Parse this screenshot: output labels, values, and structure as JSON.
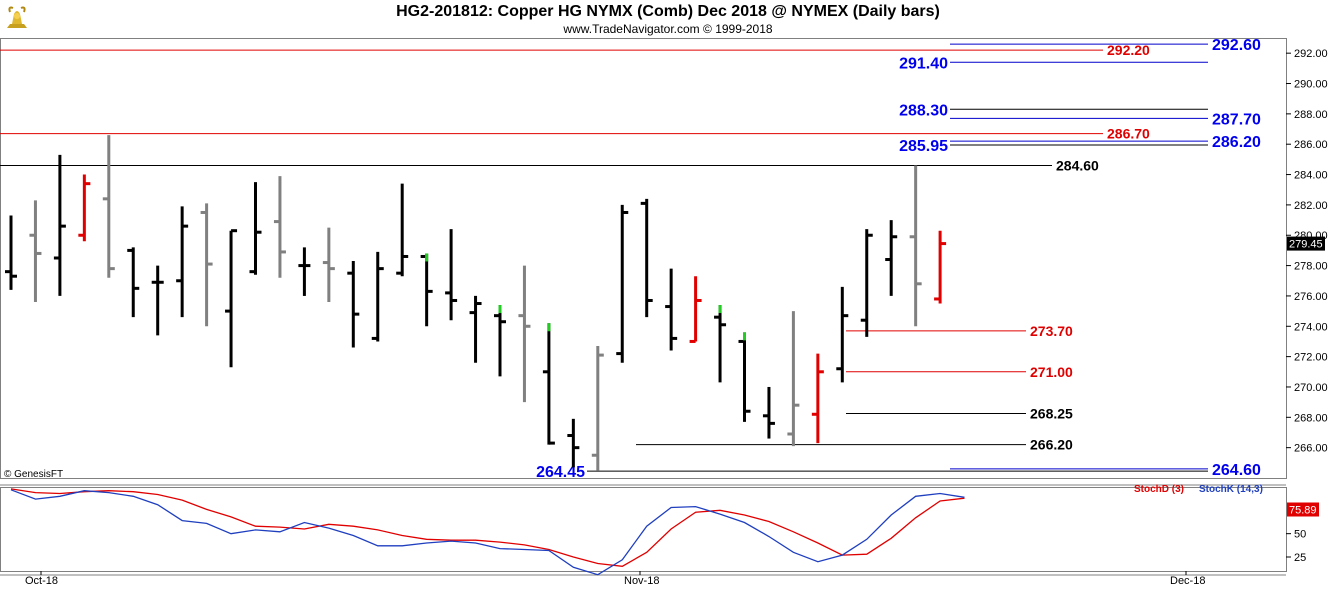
{
  "header": {
    "title": "HG2-201812:  Copper HG NYMX (Comb) Dec 2018 @ NYMEX  (Daily bars)",
    "subtitle": "www.TradeNavigator.com © 1999-2018",
    "logo_icon": "gold-bull-logo-icon"
  },
  "footer": {
    "copyright": "© GenesisFT"
  },
  "colors": {
    "up_bar": "#000000",
    "down_bar": "#808080",
    "red_bar": "#e00000",
    "green_tick": "#22cc22",
    "blue_label": "#0000ee",
    "red_label": "#e00000",
    "black_label": "#000000",
    "stoch_d": "#e00000",
    "stoch_k": "#1f3fbf"
  },
  "chart_data": [
    {
      "type": "bar",
      "subtype": "ohlc",
      "title": "HG2-201812:  Copper HG NYMX (Comb) Dec 2018 @ NYMEX  (Daily bars)",
      "y_axis": {
        "min": 264.0,
        "max": 293.0,
        "ticks": [
          "266.00",
          "268.00",
          "270.00",
          "272.00",
          "274.00",
          "276.00",
          "278.00",
          "280.00",
          "282.00",
          "284.00",
          "286.00",
          "288.00",
          "290.00",
          "292.00"
        ],
        "grid": false
      },
      "x_axis": {
        "labels": [
          "Oct-18",
          "Nov-18",
          "Dec-18"
        ]
      },
      "last_price": "279.45",
      "bars": [
        {
          "o": 277.6,
          "h": 281.3,
          "l": 276.4,
          "c": 277.3,
          "color": "black"
        },
        {
          "o": 280.0,
          "h": 282.3,
          "l": 275.6,
          "c": 278.8,
          "color": "gray"
        },
        {
          "o": 278.5,
          "h": 285.3,
          "l": 276.0,
          "c": 280.6,
          "color": "black"
        },
        {
          "o": 280.0,
          "h": 284.0,
          "l": 279.6,
          "c": 283.4,
          "color": "red"
        },
        {
          "o": 282.4,
          "h": 286.6,
          "l": 277.2,
          "c": 277.8,
          "color": "gray"
        },
        {
          "o": 279.0,
          "h": 279.2,
          "l": 274.6,
          "c": 276.5,
          "color": "black"
        },
        {
          "o": 276.9,
          "h": 278.0,
          "l": 273.4,
          "c": 276.9,
          "color": "black"
        },
        {
          "o": 277.0,
          "h": 281.9,
          "l": 274.6,
          "c": 280.6,
          "color": "black"
        },
        {
          "o": 281.5,
          "h": 282.1,
          "l": 274.0,
          "c": 278.1,
          "color": "gray"
        },
        {
          "o": 275.0,
          "h": 280.3,
          "l": 271.3,
          "c": 280.3,
          "color": "black"
        },
        {
          "o": 277.6,
          "h": 283.5,
          "l": 277.4,
          "c": 280.2,
          "color": "black"
        },
        {
          "o": 280.9,
          "h": 283.9,
          "l": 277.2,
          "c": 278.9,
          "color": "gray"
        },
        {
          "o": 278.0,
          "h": 279.2,
          "l": 276.0,
          "c": 278.0,
          "color": "black"
        },
        {
          "o": 278.2,
          "h": 280.5,
          "l": 275.6,
          "c": 277.8,
          "color": "gray"
        },
        {
          "o": 277.5,
          "h": 278.3,
          "l": 272.6,
          "c": 274.8,
          "color": "black"
        },
        {
          "o": 273.2,
          "h": 278.9,
          "l": 273.0,
          "c": 277.8,
          "color": "black"
        },
        {
          "o": 277.5,
          "h": 283.4,
          "l": 277.3,
          "c": 278.6,
          "color": "black"
        },
        {
          "o": 278.6,
          "h": 278.8,
          "l": 274.0,
          "c": 276.3,
          "color": "black",
          "green_top": true
        },
        {
          "o": 276.2,
          "h": 280.4,
          "l": 274.4,
          "c": 275.7,
          "color": "black"
        },
        {
          "o": 274.9,
          "h": 276.0,
          "l": 271.6,
          "c": 275.5,
          "color": "black"
        },
        {
          "o": 274.7,
          "h": 275.4,
          "l": 270.7,
          "c": 274.3,
          "color": "black",
          "green_top": true
        },
        {
          "o": 274.7,
          "h": 278.0,
          "l": 269.0,
          "c": 274.0,
          "color": "gray"
        },
        {
          "o": 271.0,
          "h": 274.2,
          "l": 266.2,
          "c": 266.3,
          "color": "black",
          "green_top": true
        },
        {
          "o": 266.8,
          "h": 267.9,
          "l": 264.7,
          "c": 266.0,
          "color": "black"
        },
        {
          "o": 265.5,
          "h": 272.7,
          "l": 264.5,
          "c": 272.1,
          "color": "gray"
        },
        {
          "o": 272.2,
          "h": 282.0,
          "l": 271.6,
          "c": 281.5,
          "color": "black"
        },
        {
          "o": 282.1,
          "h": 282.4,
          "l": 274.6,
          "c": 275.7,
          "color": "black"
        },
        {
          "o": 275.3,
          "h": 277.8,
          "l": 272.4,
          "c": 273.2,
          "color": "black"
        },
        {
          "o": 273.0,
          "h": 277.3,
          "l": 273.0,
          "c": 275.7,
          "color": "red"
        },
        {
          "o": 274.6,
          "h": 275.4,
          "l": 270.3,
          "c": 274.1,
          "color": "black",
          "green_top": true
        },
        {
          "o": 273.0,
          "h": 273.6,
          "l": 267.7,
          "c": 268.4,
          "color": "black",
          "green_top": true
        },
        {
          "o": 268.1,
          "h": 270.0,
          "l": 266.6,
          "c": 267.6,
          "color": "black"
        },
        {
          "o": 266.9,
          "h": 275.0,
          "l": 266.1,
          "c": 268.8,
          "color": "gray"
        },
        {
          "o": 268.2,
          "h": 272.2,
          "l": 266.3,
          "c": 271.0,
          "color": "red"
        },
        {
          "o": 271.2,
          "h": 276.6,
          "l": 270.3,
          "c": 274.7,
          "color": "black"
        },
        {
          "o": 274.4,
          "h": 280.4,
          "l": 273.3,
          "c": 280.0,
          "color": "black"
        },
        {
          "o": 278.4,
          "h": 281.0,
          "l": 276.0,
          "c": 279.9,
          "color": "black"
        },
        {
          "o": 279.9,
          "h": 284.6,
          "l": 274.0,
          "c": 276.8,
          "color": "gray"
        },
        {
          "o": 275.8,
          "h": 280.3,
          "l": 275.5,
          "c": 279.45,
          "color": "red"
        }
      ],
      "levels": [
        {
          "value": 292.6,
          "label": "292.60",
          "label_color": "blue",
          "line_color": "blue",
          "label_side": "right"
        },
        {
          "value": 292.2,
          "label": "292.20",
          "label_color": "red",
          "line_color": "red",
          "label_side": "inline",
          "line_from": "left"
        },
        {
          "value": 291.4,
          "label": "291.40",
          "label_color": "blue",
          "line_color": "blue",
          "label_side": "left"
        },
        {
          "value": 288.3,
          "label": "288.30",
          "label_color": "blue",
          "line_color": "black",
          "label_side": "left"
        },
        {
          "value": 287.7,
          "label": "287.70",
          "label_color": "blue",
          "line_color": "blue",
          "label_side": "right"
        },
        {
          "value": 286.7,
          "label": "286.70",
          "label_color": "red",
          "line_color": "red",
          "label_side": "inline",
          "line_from": "left"
        },
        {
          "value": 286.2,
          "label": "286.20",
          "label_color": "blue",
          "line_color": "blue",
          "label_side": "right"
        },
        {
          "value": 285.95,
          "label": "285.95",
          "label_color": "blue",
          "line_color": "black",
          "label_side": "left"
        },
        {
          "value": 284.6,
          "label": "284.60",
          "label_color": "black",
          "line_color": "black",
          "label_side": "inline",
          "line_from": "left"
        },
        {
          "value": 273.7,
          "label": "273.70",
          "label_color": "red",
          "line_color": "red",
          "label_side": "inline",
          "line_from": "bar"
        },
        {
          "value": 271.0,
          "label": "271.00",
          "label_color": "red",
          "line_color": "red",
          "label_side": "inline",
          "line_from": "bar"
        },
        {
          "value": 268.25,
          "label": "268.25",
          "label_color": "black",
          "line_color": "black",
          "label_side": "inline",
          "line_from": "bar"
        },
        {
          "value": 266.2,
          "label": "266.20",
          "label_color": "black",
          "line_color": "black",
          "label_side": "inline",
          "line_from": "bar2"
        },
        {
          "value": 264.6,
          "label": "264.60",
          "label_color": "blue",
          "line_color": "blue",
          "label_side": "right"
        },
        {
          "value": 264.45,
          "label": "264.45",
          "label_color": "blue",
          "line_color": "black",
          "label_side": "left"
        }
      ]
    },
    {
      "type": "line",
      "title": "",
      "y_axis": {
        "min": 10,
        "max": 100,
        "ticks": [
          "25",
          "50"
        ]
      },
      "last_value": "75.89",
      "series": [
        {
          "name": "StochD (3)",
          "color": "red",
          "values": [
            98,
            94,
            93,
            95,
            96,
            95,
            92,
            86,
            76,
            68,
            58,
            57,
            55,
            60,
            58,
            54,
            48,
            44,
            43,
            43,
            41,
            38,
            33,
            25,
            18,
            15,
            30,
            55,
            73,
            75,
            70,
            63,
            52,
            40,
            27,
            28,
            45,
            67,
            85,
            88
          ]
        },
        {
          "name": "StochK (14,3)",
          "color": "blue",
          "values": [
            97,
            87,
            90,
            96,
            94,
            90,
            81,
            64,
            61,
            50,
            54,
            52,
            62,
            56,
            48,
            37,
            37,
            40,
            42,
            40,
            34,
            33,
            32,
            14,
            6,
            22,
            58,
            78,
            79,
            71,
            62,
            47,
            30,
            20,
            27,
            44,
            70,
            90,
            93,
            89
          ]
        }
      ]
    }
  ]
}
